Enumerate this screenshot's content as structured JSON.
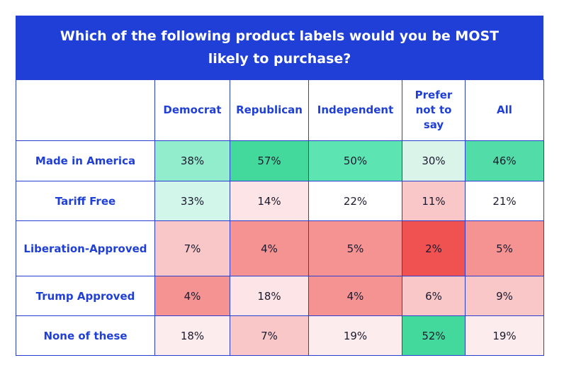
{
  "chart_data": {
    "type": "table",
    "title": "Which of the following product labels would you be MOST likely to purchase?",
    "columns": [
      "Democrat",
      "Republican",
      "Independent",
      "Prefer not to say",
      "All"
    ],
    "rows": [
      {
        "label": "Made in America",
        "values": [
          "38%",
          "57%",
          "50%",
          "30%",
          "46%"
        ],
        "colors": [
          "#92edcd",
          "#44d99c",
          "#5de4b3",
          "#dbf4e9",
          "#52dca7"
        ]
      },
      {
        "label": "Tariff Free",
        "values": [
          "33%",
          "14%",
          "22%",
          "11%",
          "21%"
        ],
        "colors": [
          "#d2f6ea",
          "#fde4e6",
          "#ffffff",
          "#f9c7c7",
          "#ffffff"
        ]
      },
      {
        "label": "Liberation-Approved",
        "values": [
          "7%",
          "4%",
          "5%",
          "2%",
          "5%"
        ],
        "colors": [
          "#f9c7c7",
          "#f59393",
          "#f59393",
          "#f05252",
          "#f59393"
        ]
      },
      {
        "label": "Trump Approved",
        "values": [
          "4%",
          "18%",
          "4%",
          "6%",
          "9%"
        ],
        "colors": [
          "#f59393",
          "#fde4e6",
          "#f59393",
          "#f9c7c7",
          "#f9c7c7"
        ]
      },
      {
        "label": "None of these",
        "values": [
          "18%",
          "7%",
          "19%",
          "52%",
          "19%"
        ],
        "colors": [
          "#fdeced",
          "#f9c7c7",
          "#fdeced",
          "#44d99c",
          "#fdeced"
        ]
      }
    ]
  }
}
